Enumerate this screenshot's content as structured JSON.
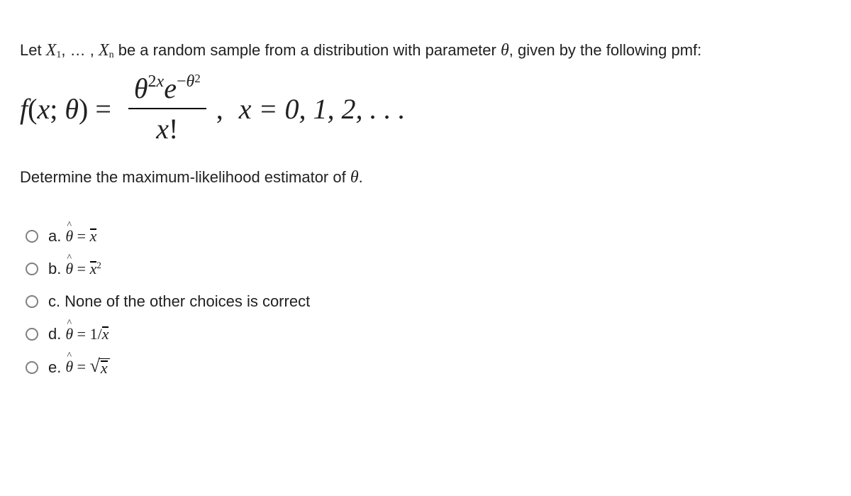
{
  "intro": {
    "pre": "Let ",
    "var1": "X",
    "sub1": "1",
    "sep": ", … , ",
    "var2": "X",
    "sub2": "n",
    "mid": " be a random sample from a distribution with parameter ",
    "param": "θ",
    "post": ", given by the following pmf:"
  },
  "equation": {
    "lhs_f": "f",
    "lhs_open": "(",
    "lhs_x": "x",
    "lhs_sep": "; ",
    "lhs_theta": "θ",
    "lhs_close": ") = ",
    "num_base1": "θ",
    "num_exp1a": "2",
    "num_exp1b": "x",
    "num_base2": "e",
    "num_exp2a": "−",
    "num_exp2b": "θ",
    "num_exp2c": "2",
    "den_x": "x",
    "den_fact": "!",
    "comma": ",",
    "rhs": "x = 0, 1, 2, . . ."
  },
  "question": {
    "pre": "Determine the maximum-likelihood estimator of ",
    "param": "θ",
    "post": "."
  },
  "options": {
    "a_label": "a.",
    "b_label": "b.",
    "c_label": "c.",
    "c_text": "None of the other choices is correct",
    "d_label": "d.",
    "e_label": "e.",
    "theta": "θ",
    "eq": " = ",
    "xbar": "x",
    "sq_exp": "2",
    "one_over": "1/",
    "hat_char": "^"
  },
  "styling": {
    "background": "#ffffff",
    "text_color": "#212121",
    "radio_border": "#808080",
    "body_fontsize": 22,
    "eq_fontsize": 40,
    "font_family_text": "Arial, Helvetica, sans-serif",
    "font_family_math": "Times New Roman, serif"
  }
}
